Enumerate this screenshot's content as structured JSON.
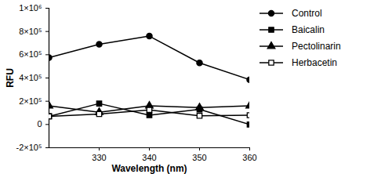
{
  "chart_data": {
    "type": "line",
    "x_label": "Wavelength (nm)",
    "y_label": "RFU",
    "x": [
      320,
      330,
      340,
      350,
      360
    ],
    "series": [
      {
        "name": "Control",
        "color": "#000000",
        "marker": "circle",
        "values": [
          575000,
          690000,
          760000,
          530000,
          385000
        ]
      },
      {
        "name": "Baicalin",
        "color": "#000000",
        "marker": "square",
        "values": [
          70000,
          180000,
          80000,
          130000,
          0
        ]
      },
      {
        "name": "Pectolinarin",
        "color": "#000000",
        "marker": "triangle",
        "values": [
          160000,
          105000,
          160000,
          145000,
          160000
        ]
      },
      {
        "name": "Herbacetin",
        "color": "#000000",
        "marker": "square_open",
        "values": [
          70000,
          90000,
          125000,
          75000,
          80000
        ]
      }
    ],
    "xlim": [
      320,
      360
    ],
    "xticks": [
      330,
      340,
      350,
      360
    ],
    "ylim": [
      -200000,
      1000000
    ],
    "yticks": [
      {
        "value": -200000,
        "label": "-2×10⁵"
      },
      {
        "value": 0,
        "label": "0"
      },
      {
        "value": 200000,
        "label": "2×10⁵"
      },
      {
        "value": 400000,
        "label": "4×10⁵"
      },
      {
        "value": 600000,
        "label": "6×10⁵"
      },
      {
        "value": 800000,
        "label": "8×10⁵"
      },
      {
        "value": 1000000,
        "label": "1×10⁶"
      }
    ],
    "grid": false,
    "legend": "right"
  }
}
